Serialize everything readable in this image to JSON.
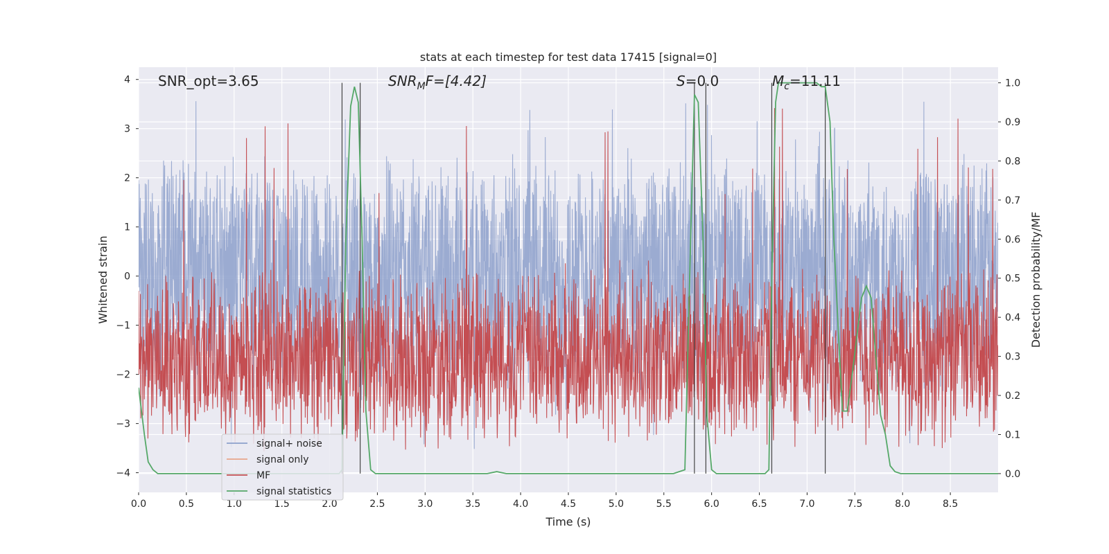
{
  "chart_data": {
    "type": "line",
    "title": "stats at each timestep for test data 17415 [signal=0]",
    "xlabel": "Time (s)",
    "ylabel_left": "Whitened strain",
    "ylabel_right": "Detection probability/MF",
    "xlim": [
      0.0,
      9.0
    ],
    "ylim_left": [
      -4.4,
      4.25
    ],
    "ylim_right": [
      -0.048,
      1.04
    ],
    "xticks": [
      0.0,
      0.5,
      1.0,
      1.5,
      2.0,
      2.5,
      3.0,
      3.5,
      4.0,
      4.5,
      5.0,
      5.5,
      6.0,
      6.5,
      7.0,
      7.5,
      8.0,
      8.5
    ],
    "xtick_labels": [
      "0.0",
      "0.5",
      "1.0",
      "1.5",
      "2.0",
      "2.5",
      "3.0",
      "3.5",
      "4.0",
      "4.5",
      "5.0",
      "5.5",
      "6.0",
      "6.5",
      "7.0",
      "7.5",
      "8.0",
      "8.5"
    ],
    "yticks_left": [
      4,
      3,
      2,
      1,
      0,
      -1,
      -2,
      -3,
      -4
    ],
    "ytick_labels_left": [
      "4",
      "3",
      "2",
      "1",
      "0",
      "−1",
      "−2",
      "−3",
      "−4"
    ],
    "yticks_right": [
      1.0,
      0.9,
      0.8,
      0.7,
      0.6,
      0.5,
      0.4,
      0.3,
      0.2,
      0.1,
      0.0
    ],
    "ytick_labels_right": [
      "1.0",
      "0.9",
      "0.8",
      "0.7",
      "0.6",
      "0.5",
      "0.4",
      "0.3",
      "0.2",
      "0.1",
      "0.0"
    ],
    "annotations": {
      "snr_opt": "SNR_opt=3.65",
      "snr_mf_sym": "SNR",
      "snr_mf_sub": "M",
      "snr_mf_rest": "F=[4.42]",
      "s_sym": "S",
      "s_rest": "=0.0",
      "mc_sym": "M",
      "mc_sub": "c",
      "mc_rest": "=11.11"
    },
    "legend": {
      "placement": "lower-left",
      "entries": [
        {
          "label": "signal+ noise",
          "color": "#8da0cb"
        },
        {
          "label": "signal only",
          "color": "#e8a58a"
        },
        {
          "label": "MF",
          "color": "#c44e52"
        },
        {
          "label": "signal statistics",
          "color": "#55a868"
        }
      ]
    },
    "vertical_lines_x": [
      2.13,
      2.32,
      5.82,
      5.94,
      6.63,
      7.19
    ],
    "noise": {
      "duration": 9.0,
      "amplitude_band": [
        -2.5,
        2.5
      ],
      "extreme_range": [
        -3.6,
        3.6
      ],
      "color": "#8da0cb"
    },
    "mf": {
      "center": 0.3,
      "band": [
        0.05,
        0.55
      ],
      "peak": 0.95,
      "color": "#c44e52"
    },
    "series": [
      {
        "name": "signal statistics",
        "axis": "right",
        "color": "#55a868",
        "x": [
          0.0,
          0.06,
          0.1,
          0.15,
          0.2,
          0.3,
          0.5,
          1.0,
          1.5,
          2.0,
          2.05,
          2.1,
          2.13,
          2.17,
          2.22,
          2.26,
          2.3,
          2.34,
          2.38,
          2.43,
          2.48,
          2.6,
          3.0,
          3.5,
          3.65,
          3.75,
          3.85,
          4.0,
          4.5,
          5.0,
          5.5,
          5.6,
          5.66,
          5.72,
          5.78,
          5.82,
          5.86,
          5.91,
          5.95,
          6.0,
          6.05,
          6.1,
          6.2,
          6.3,
          6.4,
          6.56,
          6.6,
          6.63,
          6.67,
          6.7,
          6.74,
          6.8,
          6.9,
          7.0,
          7.1,
          7.15,
          7.19,
          7.24,
          7.28,
          7.33,
          7.37,
          7.42,
          7.47,
          7.52,
          7.57,
          7.62,
          7.67,
          7.72,
          7.77,
          7.82,
          7.87,
          7.92,
          7.98,
          8.1,
          8.5,
          9.0
        ],
        "values": [
          0.22,
          0.1,
          0.03,
          0.01,
          0.0,
          0.0,
          0.0,
          0.0,
          0.0,
          0.0,
          0.0,
          0.0,
          0.01,
          0.6,
          0.94,
          0.99,
          0.95,
          0.6,
          0.16,
          0.01,
          0.0,
          0.0,
          0.0,
          0.0,
          0.0,
          0.005,
          0.0,
          0.0,
          0.0,
          0.0,
          0.0,
          0.0,
          0.005,
          0.01,
          0.6,
          0.97,
          0.95,
          0.6,
          0.15,
          0.01,
          0.0,
          0.0,
          0.0,
          0.0,
          0.0,
          0.0,
          0.01,
          0.5,
          0.95,
          1.0,
          1.0,
          1.0,
          1.0,
          1.0,
          1.0,
          0.99,
          0.99,
          0.9,
          0.6,
          0.35,
          0.16,
          0.16,
          0.25,
          0.35,
          0.45,
          0.48,
          0.45,
          0.3,
          0.15,
          0.1,
          0.02,
          0.005,
          0.0,
          0.0,
          0.0,
          0.0
        ]
      }
    ]
  }
}
